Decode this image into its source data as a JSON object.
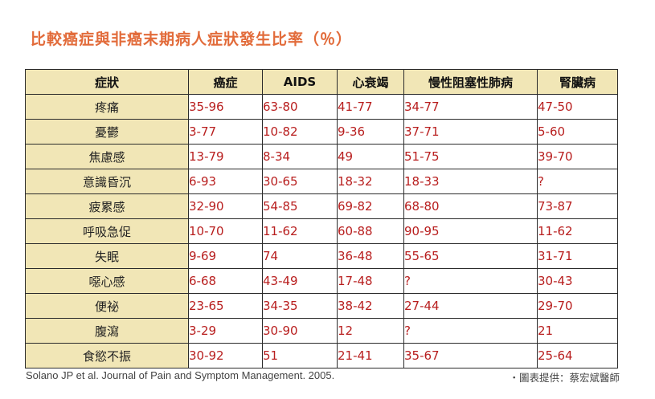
{
  "title": "比較癌症與非癌末期病人症狀發生比率（％）",
  "table": {
    "headers": [
      "症狀",
      "癌症",
      "AIDS",
      "心衰竭",
      "慢性阻塞性肺病",
      "腎臟病"
    ],
    "rows": [
      [
        "疼痛",
        "35-96",
        "63-80",
        "41-77",
        "34-77",
        "47-50"
      ],
      [
        "憂鬱",
        "3-77",
        "10-82",
        "9-36",
        "37-71",
        "5-60"
      ],
      [
        "焦慮感",
        "13-79",
        "8-34",
        "49",
        "51-75",
        "39-70"
      ],
      [
        "意識昏沉",
        "6-93",
        "30-65",
        "18-32",
        "18-33",
        "?"
      ],
      [
        "疲累感",
        "32-90",
        "54-85",
        "69-82",
        "68-80",
        "73-87"
      ],
      [
        "呼吸急促",
        "10-70",
        "11-62",
        "60-88",
        "90-95",
        "11-62"
      ],
      [
        "失眠",
        "9-69",
        "74",
        "36-48",
        "55-65",
        "31-71"
      ],
      [
        "噁心感",
        "6-68",
        "43-49",
        "17-48",
        "?",
        "30-43"
      ],
      [
        "便祕",
        "23-65",
        "34-35",
        "38-42",
        "27-44",
        "29-70"
      ],
      [
        "腹瀉",
        "3-29",
        "30-90",
        "12",
        "?",
        "21"
      ],
      [
        "食慾不振",
        "30-92",
        "51",
        "21-41",
        "35-67",
        "25-64"
      ]
    ]
  },
  "source": "Solano JP et al. Journal of Pain and Symptom Management. 2005.",
  "credit": "・圖表提供：蔡宏斌醫師",
  "colors": {
    "title": "#e26b3a",
    "header_bg": "#f1e6b6",
    "value_text": "#b81e1e",
    "border": "#2b2b2b"
  }
}
